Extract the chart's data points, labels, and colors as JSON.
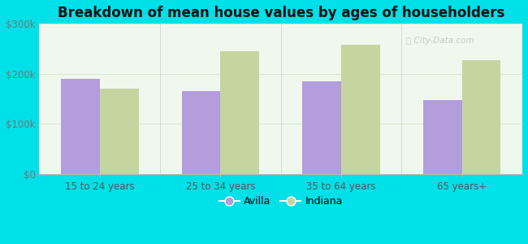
{
  "title": "Breakdown of mean house values by ages of householders",
  "categories": [
    "15 to 24 years",
    "25 to 34 years",
    "35 to 64 years",
    "65 years+"
  ],
  "avilla_values": [
    190000,
    165000,
    185000,
    148000
  ],
  "indiana_values": [
    170000,
    245000,
    258000,
    228000
  ],
  "avilla_color": "#b39ddb",
  "indiana_color": "#c5d5a0",
  "ylim": [
    0,
    300000
  ],
  "yticks": [
    0,
    100000,
    200000,
    300000
  ],
  "ytick_labels": [
    "$0",
    "$100k",
    "$200k",
    "$300k"
  ],
  "legend_avilla": "Avilla",
  "legend_indiana": "Indiana",
  "background_outer": "#00e0e8",
  "title_fontsize": 12,
  "bar_width": 0.32
}
